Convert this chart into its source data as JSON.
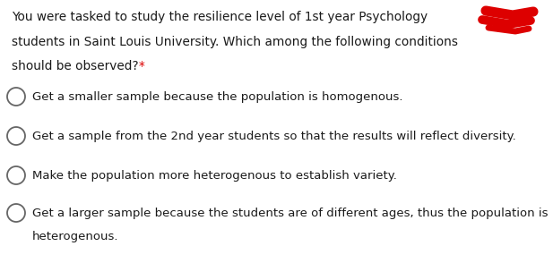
{
  "background_color": "#ffffff",
  "question_lines": [
    "You were tasked to study the resilience level of 1st year Psychology",
    "students in Saint Louis University. Which among the following conditions",
    "should be observed? *"
  ],
  "options": [
    [
      "Get a smaller sample because the population is homogenous."
    ],
    [
      "Get a sample from the 2nd year students so that the results will reflect diversity."
    ],
    [
      "Make the population more heterogenous to establish variety."
    ],
    [
      "Get a larger sample because the students are of different ages, thus the population is",
      "heterogenous."
    ]
  ],
  "text_color": "#1a1a1a",
  "circle_edge_color": "#666666",
  "circle_face_color": "#ffffff",
  "scribble_color": "#dd0000",
  "question_fontsize": 9.8,
  "option_fontsize": 9.5,
  "fig_width": 6.17,
  "fig_height": 2.94,
  "dpi": 100
}
